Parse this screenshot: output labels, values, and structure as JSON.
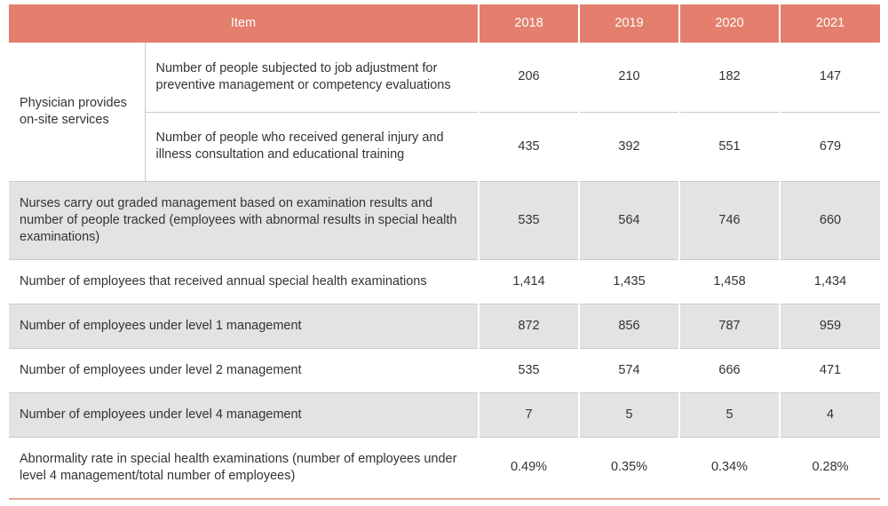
{
  "header": {
    "item": "Item",
    "years": [
      "2018",
      "2019",
      "2020",
      "2021"
    ]
  },
  "physician": {
    "group_label": "Physician provides on-site services",
    "rows": [
      {
        "label": "Number of people subjected to job adjustment for preventive management or competency evaluations",
        "values": [
          "206",
          "210",
          "182",
          "147"
        ]
      },
      {
        "label": "Number of people who received general injury and illness consultation and educational training",
        "values": [
          "435",
          "392",
          "551",
          "679"
        ]
      }
    ]
  },
  "rows": [
    {
      "label": "Nurses carry out graded management based on examination results and number of people tracked (employees with abnormal results in special health examinations)",
      "values": [
        "535",
        "564",
        "746",
        "660"
      ]
    },
    {
      "label": "Number of employees that received annual special health examinations",
      "values": [
        "1,414",
        "1,435",
        "1,458",
        "1,434"
      ]
    },
    {
      "label": "Number of employees under level 1 management",
      "values": [
        "872",
        "856",
        "787",
        "959"
      ]
    },
    {
      "label": "Number of employees under level 2 management",
      "values": [
        "535",
        "574",
        "666",
        "471"
      ]
    },
    {
      "label": "Number of employees under level 4 management",
      "values": [
        "7",
        "5",
        "5",
        "4"
      ]
    },
    {
      "label": "Abnormality rate in special health examinations (number of employees under level 4 management/total number of employees)",
      "values": [
        "0.49%",
        "0.35%",
        "0.34%",
        "0.28%"
      ]
    }
  ],
  "colors": {
    "header_bg": "#e47f6d",
    "shaded_row_bg": "#e3e3e3"
  }
}
